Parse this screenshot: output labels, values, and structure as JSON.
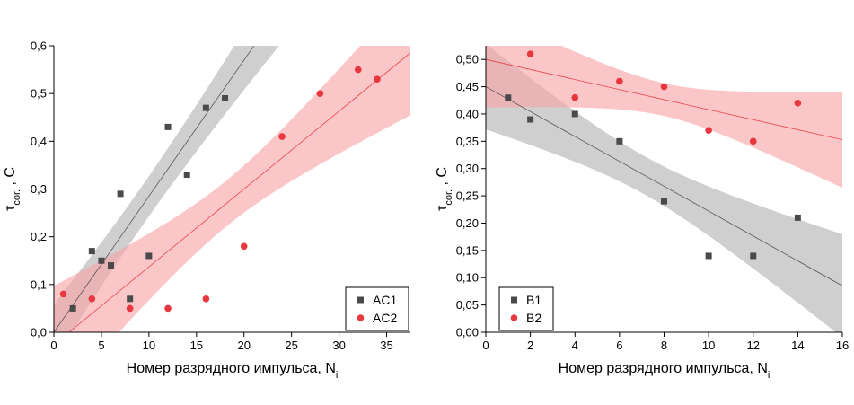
{
  "colors": {
    "series_dark": "#4a4a4a",
    "series_red": "#e8373e",
    "band_gray": "#bdbdbd",
    "band_red": "#f7a3a6"
  },
  "chart_data": [
    {
      "type": "scatter",
      "xlabel": "Номер разрядного импульса, N",
      "xlabel_sub": "i",
      "ylabel": "τ",
      "ylabel_sub": "cor.",
      "ylabel_rest": " , С",
      "xlim": [
        0,
        37.5
      ],
      "ylim": [
        0,
        0.6
      ],
      "x_ticks": [
        0,
        5,
        10,
        15,
        20,
        25,
        30,
        35
      ],
      "y_ticks": [
        0,
        0.1,
        0.2,
        0.3,
        0.4,
        0.5,
        0.6
      ],
      "x_tick_labels": [
        "0",
        "5",
        "10",
        "15",
        "20",
        "25",
        "30",
        "35"
      ],
      "y_tick_labels": [
        "0,0",
        "0,1",
        "0,2",
        "0,3",
        "0,4",
        "0,5",
        "0,6"
      ],
      "legend_position": "bottom-right",
      "series": [
        {
          "name": "AC1",
          "marker": "square",
          "color": "#4a4a4a",
          "band_color": "#bdbdbd",
          "x": [
            2,
            4,
            5,
            6,
            7,
            8,
            10,
            12,
            14,
            16,
            18
          ],
          "y": [
            0.05,
            0.17,
            0.15,
            0.14,
            0.29,
            0.07,
            0.16,
            0.43,
            0.33,
            0.47,
            0.49
          ],
          "fit": {
            "intercept": 0.0,
            "slope": 0.0285
          },
          "band": {
            "half_width_min": 0.042,
            "half_width_max": 0.125,
            "x_center": 9.3,
            "x_edge": 0
          }
        },
        {
          "name": "AC2",
          "marker": "circle",
          "color": "#e8373e",
          "band_color": "#f7a3a6",
          "x": [
            1,
            4,
            8,
            12,
            16,
            20,
            24,
            28,
            32,
            34
          ],
          "y": [
            0.08,
            0.07,
            0.05,
            0.05,
            0.07,
            0.18,
            0.41,
            0.5,
            0.55,
            0.53
          ],
          "fit": {
            "intercept": -0.026,
            "slope": 0.0163
          },
          "band": {
            "half_width_min": 0.048,
            "half_width_max": 0.125,
            "x_center": 18.1,
            "x_edge": 37.5
          }
        }
      ]
    },
    {
      "type": "scatter",
      "xlabel": "Номер разрядного импульса, N",
      "xlabel_sub": "i",
      "ylabel": "τ",
      "ylabel_sub": "cor.",
      "ylabel_rest": " , С",
      "xlim": [
        0,
        16
      ],
      "ylim": [
        0,
        0.525
      ],
      "x_ticks": [
        0,
        2,
        4,
        6,
        8,
        10,
        12,
        14,
        16
      ],
      "y_ticks": [
        0,
        0.05,
        0.1,
        0.15,
        0.2,
        0.25,
        0.3,
        0.35,
        0.4,
        0.45,
        0.5
      ],
      "x_tick_labels": [
        "0",
        "2",
        "4",
        "6",
        "8",
        "10",
        "12",
        "14",
        "16"
      ],
      "y_tick_labels": [
        "0,00",
        "0,05",
        "0,10",
        "0,15",
        "0,20",
        "0,25",
        "0,30",
        "0,35",
        "0,40",
        "0,45",
        "0,50"
      ],
      "legend_position": "bottom-left",
      "series": [
        {
          "name": "B1",
          "marker": "square",
          "color": "#4a4a4a",
          "band_color": "#bdbdbd",
          "x": [
            1,
            2,
            4,
            6,
            8,
            10,
            12,
            14
          ],
          "y": [
            0.43,
            0.39,
            0.4,
            0.35,
            0.24,
            0.14,
            0.14,
            0.21
          ],
          "fit": {
            "intercept": 0.45,
            "slope": -0.0228
          },
          "band": {
            "half_width_min": 0.035,
            "half_width_max": 0.09,
            "x_center": 7.1,
            "x_edge": 16
          }
        },
        {
          "name": "B2",
          "marker": "circle",
          "color": "#e8373e",
          "band_color": "#f7a3a6",
          "x": [
            2,
            4,
            6,
            8,
            10,
            12,
            14
          ],
          "y": [
            0.51,
            0.43,
            0.46,
            0.45,
            0.37,
            0.35,
            0.42
          ],
          "fit": {
            "intercept": 0.5,
            "slope": -0.0092
          },
          "band": {
            "half_width_min": 0.03,
            "half_width_max": 0.085,
            "x_center": 8.0,
            "x_edge": 16
          }
        }
      ]
    }
  ]
}
